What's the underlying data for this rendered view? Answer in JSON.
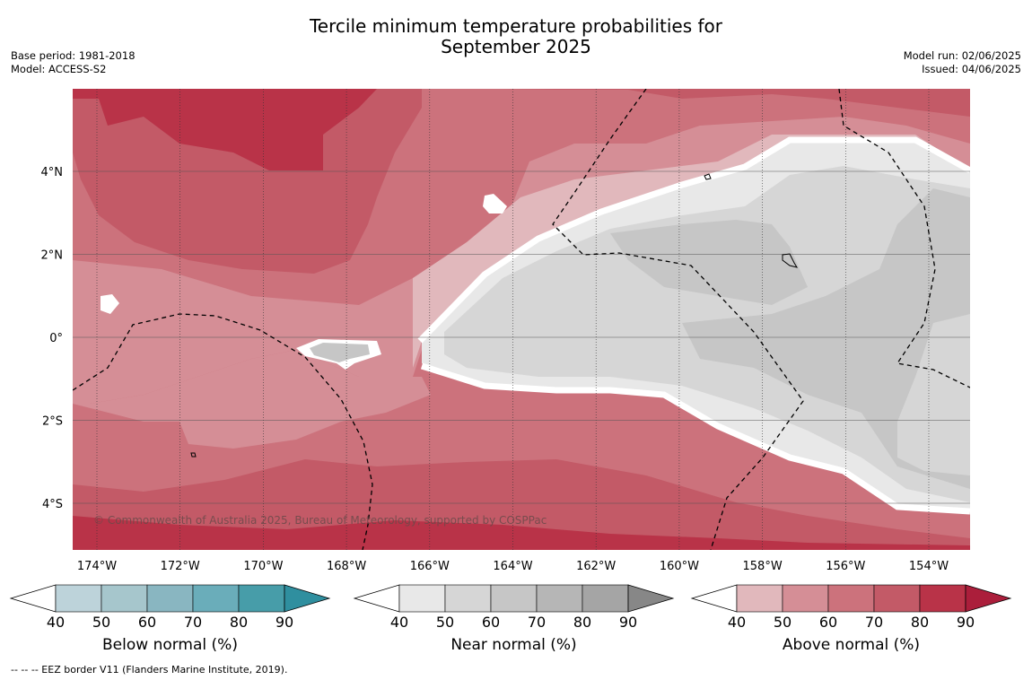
{
  "title_line1": "Tercile minimum temperature probabilities for",
  "title_line2": "September 2025",
  "base_period": "Base period: 1981-2018",
  "model": "Model: ACCESS-S2",
  "model_run": "Model run: 02/06/2025",
  "issued": "Issued: 04/06/2025",
  "copyright": "© Commonwealth of Australia 2025, Bureau of Meteorology, supported by COSPPac",
  "footnote": "-- -- -- EEZ border V11 (Flanders Marine Institute, 2019).",
  "map": {
    "lon_labels": [
      "174°W",
      "172°W",
      "170°W",
      "168°W",
      "166°W",
      "164°W",
      "162°W",
      "160°W",
      "158°W",
      "156°W",
      "154°W"
    ],
    "lat_labels": [
      "4°N",
      "2°N",
      "0°",
      "2°S",
      "4°S"
    ]
  },
  "colorbars": [
    {
      "label": "Below normal (%)",
      "ticks": [
        "40",
        "50",
        "60",
        "70",
        "80",
        "90"
      ],
      "colors": [
        "#bdd3da",
        "#a6c6cc",
        "#89b6c1",
        "#6aadba",
        "#479da9"
      ],
      "extend_color": "#2f8f9f"
    },
    {
      "label": "Near normal (%)",
      "ticks": [
        "40",
        "50",
        "60",
        "70",
        "80",
        "90"
      ],
      "colors": [
        "#e8e8e8",
        "#d6d6d6",
        "#c6c6c6",
        "#b6b6b6",
        "#a5a5a5"
      ],
      "extend_color": "#878787"
    },
    {
      "label": "Above normal (%)",
      "ticks": [
        "40",
        "50",
        "60",
        "70",
        "80",
        "90"
      ],
      "colors": [
        "#e1b8bc",
        "#d58e96",
        "#cc727c",
        "#c35a67",
        "#b93348"
      ],
      "extend_color": "#ab1e3b"
    }
  ]
}
